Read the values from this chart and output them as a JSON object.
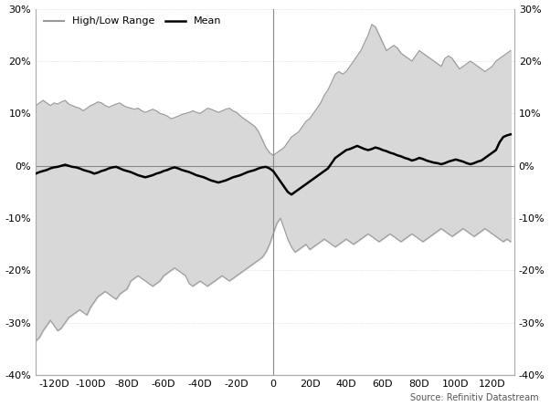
{
  "x": [
    -130,
    -128,
    -126,
    -124,
    -122,
    -120,
    -118,
    -116,
    -114,
    -112,
    -110,
    -108,
    -106,
    -104,
    -102,
    -100,
    -98,
    -96,
    -94,
    -92,
    -90,
    -88,
    -86,
    -84,
    -82,
    -80,
    -78,
    -76,
    -74,
    -72,
    -70,
    -68,
    -66,
    -64,
    -62,
    -60,
    -58,
    -56,
    -54,
    -52,
    -50,
    -48,
    -46,
    -44,
    -42,
    -40,
    -38,
    -36,
    -34,
    -32,
    -30,
    -28,
    -26,
    -24,
    -22,
    -20,
    -18,
    -16,
    -14,
    -12,
    -10,
    -8,
    -6,
    -4,
    -2,
    0,
    2,
    4,
    6,
    8,
    10,
    12,
    14,
    16,
    18,
    20,
    22,
    24,
    26,
    28,
    30,
    32,
    34,
    36,
    38,
    40,
    42,
    44,
    46,
    48,
    50,
    52,
    54,
    56,
    58,
    60,
    62,
    64,
    66,
    68,
    70,
    72,
    74,
    76,
    78,
    80,
    82,
    84,
    86,
    88,
    90,
    92,
    94,
    96,
    98,
    100,
    102,
    104,
    106,
    108,
    110,
    112,
    114,
    116,
    118,
    120,
    122,
    124,
    126,
    128,
    130
  ],
  "high": [
    11.5,
    12.0,
    12.5,
    12.0,
    11.5,
    12.0,
    11.8,
    12.2,
    12.5,
    11.8,
    11.5,
    11.2,
    11.0,
    10.5,
    11.0,
    11.5,
    11.8,
    12.2,
    12.0,
    11.5,
    11.2,
    11.5,
    11.8,
    12.0,
    11.5,
    11.2,
    11.0,
    10.8,
    11.0,
    10.5,
    10.2,
    10.5,
    10.8,
    10.5,
    10.0,
    9.8,
    9.5,
    9.0,
    9.2,
    9.5,
    9.8,
    10.0,
    10.2,
    10.5,
    10.2,
    10.0,
    10.5,
    11.0,
    10.8,
    10.5,
    10.2,
    10.5,
    10.8,
    11.0,
    10.5,
    10.2,
    9.5,
    9.0,
    8.5,
    8.0,
    7.5,
    6.5,
    5.0,
    3.5,
    2.5,
    2.0,
    2.5,
    3.0,
    3.5,
    4.5,
    5.5,
    6.0,
    6.5,
    7.5,
    8.5,
    9.0,
    10.0,
    11.0,
    12.0,
    13.5,
    14.5,
    16.0,
    17.5,
    18.0,
    17.5,
    18.0,
    19.0,
    20.0,
    21.0,
    22.0,
    23.5,
    25.0,
    27.0,
    26.5,
    25.0,
    23.5,
    22.0,
    22.5,
    23.0,
    22.5,
    21.5,
    21.0,
    20.5,
    20.0,
    21.0,
    22.0,
    21.5,
    21.0,
    20.5,
    20.0,
    19.5,
    19.0,
    20.5,
    21.0,
    20.5,
    19.5,
    18.5,
    19.0,
    19.5,
    20.0,
    19.5,
    19.0,
    18.5,
    18.0,
    18.5,
    19.0,
    20.0,
    20.5,
    21.0,
    21.5,
    22.0
  ],
  "low": [
    -33.5,
    -32.8,
    -31.5,
    -30.5,
    -29.5,
    -30.5,
    -31.5,
    -31.0,
    -30.0,
    -29.0,
    -28.5,
    -28.0,
    -27.5,
    -28.0,
    -28.5,
    -27.0,
    -26.0,
    -25.0,
    -24.5,
    -24.0,
    -24.5,
    -25.0,
    -25.5,
    -24.5,
    -24.0,
    -23.5,
    -22.0,
    -21.5,
    -21.0,
    -21.5,
    -22.0,
    -22.5,
    -23.0,
    -22.5,
    -22.0,
    -21.0,
    -20.5,
    -20.0,
    -19.5,
    -20.0,
    -20.5,
    -21.0,
    -22.5,
    -23.0,
    -22.5,
    -22.0,
    -22.5,
    -23.0,
    -22.5,
    -22.0,
    -21.5,
    -21.0,
    -21.5,
    -22.0,
    -21.5,
    -21.0,
    -20.5,
    -20.0,
    -19.5,
    -19.0,
    -18.5,
    -18.0,
    -17.5,
    -16.5,
    -15.0,
    -13.0,
    -11.0,
    -10.0,
    -12.0,
    -14.0,
    -15.5,
    -16.5,
    -16.0,
    -15.5,
    -15.0,
    -16.0,
    -15.5,
    -15.0,
    -14.5,
    -14.0,
    -14.5,
    -15.0,
    -15.5,
    -15.0,
    -14.5,
    -14.0,
    -14.5,
    -15.0,
    -14.5,
    -14.0,
    -13.5,
    -13.0,
    -13.5,
    -14.0,
    -14.5,
    -14.0,
    -13.5,
    -13.0,
    -13.5,
    -14.0,
    -14.5,
    -14.0,
    -13.5,
    -13.0,
    -13.5,
    -14.0,
    -14.5,
    -14.0,
    -13.5,
    -13.0,
    -12.5,
    -12.0,
    -12.5,
    -13.0,
    -13.5,
    -13.0,
    -12.5,
    -12.0,
    -12.5,
    -13.0,
    -13.5,
    -13.0,
    -12.5,
    -12.0,
    -12.5,
    -13.0,
    -13.5,
    -14.0,
    -14.5,
    -14.0,
    -14.5
  ],
  "mean": [
    -1.5,
    -1.2,
    -1.0,
    -0.8,
    -0.5,
    -0.3,
    -0.2,
    0.0,
    0.2,
    0.0,
    -0.2,
    -0.3,
    -0.5,
    -0.8,
    -1.0,
    -1.2,
    -1.5,
    -1.3,
    -1.0,
    -0.8,
    -0.5,
    -0.3,
    -0.2,
    -0.5,
    -0.8,
    -1.0,
    -1.2,
    -1.5,
    -1.8,
    -2.0,
    -2.2,
    -2.0,
    -1.8,
    -1.5,
    -1.3,
    -1.0,
    -0.8,
    -0.5,
    -0.3,
    -0.5,
    -0.8,
    -1.0,
    -1.2,
    -1.5,
    -1.8,
    -2.0,
    -2.2,
    -2.5,
    -2.8,
    -3.0,
    -3.2,
    -3.0,
    -2.8,
    -2.5,
    -2.2,
    -2.0,
    -1.8,
    -1.5,
    -1.2,
    -1.0,
    -0.8,
    -0.5,
    -0.3,
    -0.2,
    -0.5,
    -1.0,
    -2.0,
    -3.0,
    -4.0,
    -5.0,
    -5.5,
    -5.0,
    -4.5,
    -4.0,
    -3.5,
    -3.0,
    -2.5,
    -2.0,
    -1.5,
    -1.0,
    -0.5,
    0.5,
    1.5,
    2.0,
    2.5,
    3.0,
    3.2,
    3.5,
    3.8,
    3.5,
    3.2,
    3.0,
    3.2,
    3.5,
    3.3,
    3.0,
    2.8,
    2.5,
    2.3,
    2.0,
    1.8,
    1.5,
    1.3,
    1.0,
    1.2,
    1.5,
    1.3,
    1.0,
    0.8,
    0.6,
    0.5,
    0.3,
    0.5,
    0.8,
    1.0,
    1.2,
    1.0,
    0.8,
    0.5,
    0.3,
    0.5,
    0.8,
    1.0,
    1.5,
    2.0,
    2.5,
    3.0,
    4.5,
    5.5,
    5.8,
    6.0
  ],
  "background_color": "white",
  "fill_color": "#d8d8d8",
  "range_line_color": "#999999",
  "mean_line_color": "#000000",
  "zero_line_color": "#888888",
  "vline_color": "#888888",
  "grid_color": "#cccccc",
  "source_text": "Source: Refinitiv Datastream",
  "legend_range_label": "High/Low Range",
  "legend_mean_label": "Mean",
  "ylim": [
    -40,
    30
  ],
  "xlim": [
    -130,
    132
  ],
  "yticks": [
    -40,
    -30,
    -20,
    -10,
    0,
    10,
    20,
    30
  ],
  "xticks": [
    -120,
    -100,
    -80,
    -60,
    -40,
    -20,
    0,
    20,
    40,
    60,
    80,
    100,
    120
  ],
  "xtick_labels": [
    "-120D",
    "-100D",
    "-80D",
    "-60D",
    "-40D",
    "-20D",
    "0",
    "20D",
    "40D",
    "60D",
    "80D",
    "100D",
    "120D"
  ]
}
